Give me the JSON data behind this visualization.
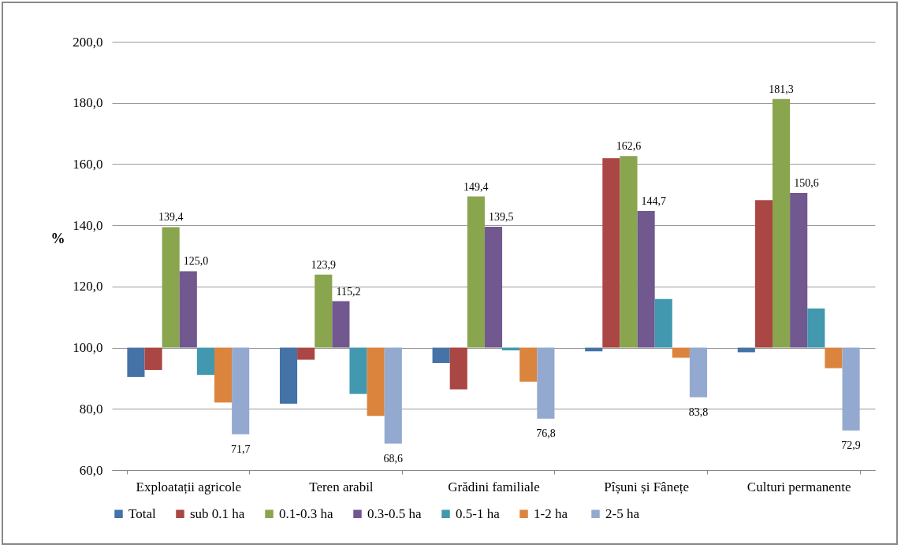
{
  "chart_data": {
    "type": "bar",
    "ylabel": "%",
    "categories": [
      "Exploatații agricole",
      "Teren arabil",
      "Grădini familiale",
      "Pîșuni și Fânețe",
      "Culturi permanente"
    ],
    "series": [
      {
        "name": "Total",
        "color": "#4572a7",
        "base": [
          100,
          100,
          100,
          100,
          100
        ],
        "values": [
          -9.6,
          -18.3,
          -5.0,
          -1.2,
          -1.5
        ],
        "value_labels": [
          null,
          null,
          null,
          null,
          null
        ]
      },
      {
        "name": "sub 0.1 ha",
        "color": "#aa4643",
        "base": [
          100,
          100,
          100,
          100,
          100
        ],
        "values": [
          -7.3,
          -3.9,
          -13.6,
          61.9,
          48.2
        ],
        "value_labels": [
          null,
          null,
          null,
          null,
          null
        ]
      },
      {
        "name": "0.1-0.3 ha",
        "color": "#89a54e",
        "base": [
          100,
          100,
          100,
          100,
          100
        ],
        "values": [
          39.4,
          23.9,
          49.4,
          62.6,
          81.3
        ],
        "value_labels": [
          "139,4",
          "123,9",
          "149,4",
          "162,6",
          "181,3"
        ]
      },
      {
        "name": "0.3-0.5 ha",
        "color": "#71588f",
        "base": [
          100,
          100,
          100,
          100,
          100
        ],
        "values": [
          25.0,
          15.2,
          39.5,
          44.7,
          50.6
        ],
        "value_labels": [
          "125,0",
          "115,2",
          "139,5",
          "144,7",
          "150,6"
        ]
      },
      {
        "name": "0.5-1 ha",
        "color": "#4198af",
        "base": [
          100,
          100,
          100,
          100,
          100
        ],
        "values": [
          -8.9,
          -15.1,
          -0.9,
          15.9,
          12.8
        ],
        "value_labels": [
          null,
          null,
          null,
          null,
          null
        ]
      },
      {
        "name": "1-2  ha",
        "color": "#db843d",
        "base": [
          100,
          100,
          100,
          100,
          100
        ],
        "values": [
          -17.9,
          -22.3,
          -11.1,
          -3.3,
          -6.7
        ],
        "value_labels": [
          null,
          null,
          null,
          null,
          null
        ]
      },
      {
        "name": "2-5  ha",
        "color": "#93a9cf",
        "base": [
          100,
          100,
          100,
          100,
          100
        ],
        "values": [
          -28.3,
          -31.4,
          -23.2,
          -16.2,
          -27.1
        ],
        "value_labels": [
          "71,7",
          "68,6",
          "76,8",
          "83,8",
          "72,9"
        ]
      }
    ],
    "ylim": [
      60,
      200
    ],
    "yticks": [
      {
        "value": 60,
        "label": "60,0"
      },
      {
        "value": 80,
        "label": "80,0"
      },
      {
        "value": 100,
        "label": "100,0"
      },
      {
        "value": 120,
        "label": "120,0"
      },
      {
        "value": 140,
        "label": "140,0"
      },
      {
        "value": 160,
        "label": "160,0"
      },
      {
        "value": 180,
        "label": "180,0"
      },
      {
        "value": 200,
        "label": "200,0"
      }
    ],
    "grid": "y",
    "legend": "bottom"
  }
}
